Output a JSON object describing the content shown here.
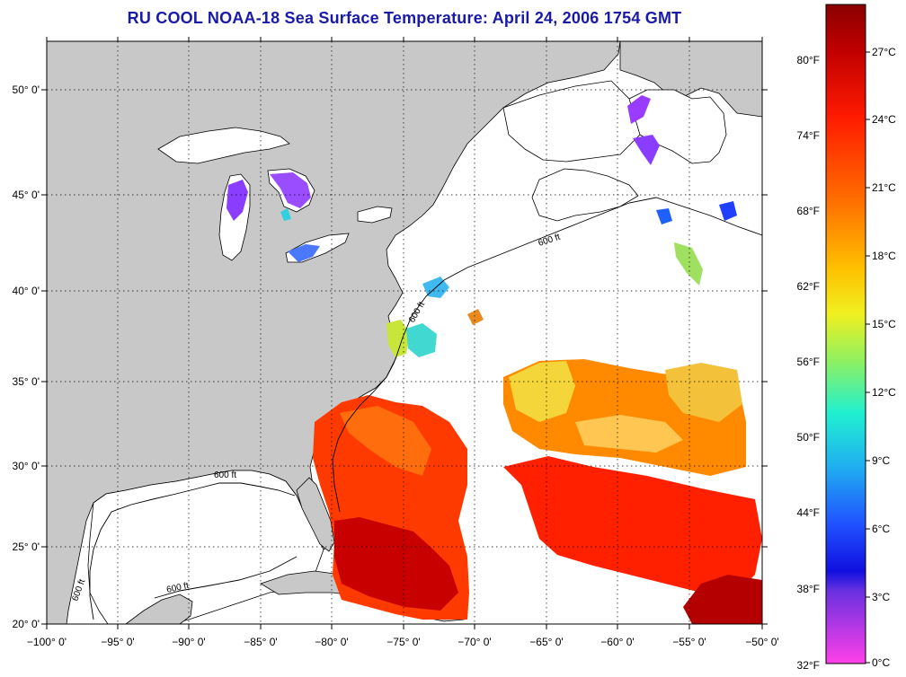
{
  "title": "RU COOL  NOAA-18  Sea Surface Temperature:  April 24, 2006 1754 GMT",
  "map": {
    "lon_labels": [
      "−100° 0'",
      "−95° 0'",
      "−90° 0'",
      "−85° 0'",
      "−80° 0'",
      "−75° 0'",
      "−70° 0'",
      "−65° 0'",
      "−60° 0'",
      "−55° 0'",
      "−50° 0'"
    ],
    "lat_labels": [
      "50° 0'",
      "45° 0'",
      "40° 0'",
      "35° 0'",
      "30° 0'",
      "25° 0'",
      "20° 0'"
    ],
    "contour_label": "600 ft",
    "colors": {
      "land": "#c8c8c8",
      "water_nodata": "#ffffff",
      "warm_core": "#c80000",
      "warm": "#ff3000",
      "orange": "#ff7a00",
      "yellow": "#f6e23a",
      "cool_cyan": "#22d0e0",
      "cold_blue": "#2040ff",
      "lake_purple": "#8a3cff"
    }
  },
  "colorbar": {
    "fahrenheit_labels": [
      "80°F",
      "74°F",
      "68°F",
      "62°F",
      "56°F",
      "50°F",
      "44°F",
      "38°F",
      "32°F"
    ],
    "celsius_labels": [
      "27°C",
      "24°C",
      "21°C",
      "18°C",
      "15°C",
      "12°C",
      "9°C",
      "6°C",
      "3°C",
      "0°C"
    ],
    "gradient_stops": [
      "#8b0000",
      "#d00000",
      "#ff2000",
      "#ff7000",
      "#ffb000",
      "#f0f020",
      "#a0f040",
      "#30f0c0",
      "#20c0f0",
      "#2060ff",
      "#1010f0",
      "#8040e0",
      "#ff40e0"
    ]
  }
}
